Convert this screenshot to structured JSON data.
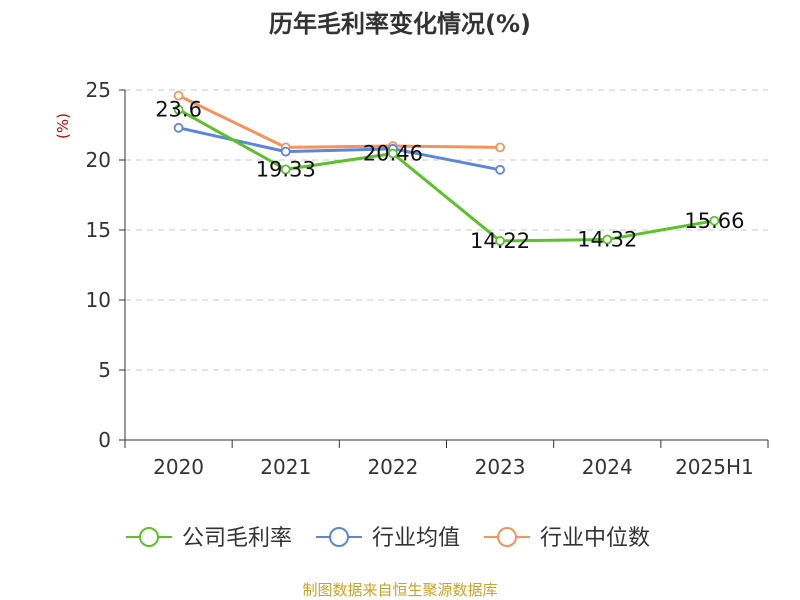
{
  "chart_data": {
    "type": "line",
    "title": "历年毛利率变化情况(%)",
    "ylabel": "(%)",
    "categories": [
      "2020",
      "2021",
      "2022",
      "2023",
      "2024",
      "2025H1"
    ],
    "ylim": [
      0,
      25
    ],
    "yticks": [
      0,
      5,
      10,
      15,
      20,
      25
    ],
    "grid": true,
    "legend_position": "bottom",
    "series": [
      {
        "name": "公司毛利率",
        "color": "#5cc12a",
        "values": [
          23.6,
          19.33,
          20.46,
          14.22,
          14.32,
          15.66
        ],
        "labels": [
          "23.6",
          "19.33",
          "20.46",
          "14.22",
          "14.32",
          "15.66"
        ]
      },
      {
        "name": "行业均值",
        "color": "#5b86d9",
        "values": [
          22.3,
          20.6,
          20.8,
          19.3,
          null,
          null
        ]
      },
      {
        "name": "行业中位数",
        "color": "#f4935b",
        "values": [
          24.6,
          20.9,
          21.0,
          20.9,
          null,
          null
        ]
      }
    ]
  },
  "source": "制图数据来自恒生聚源数据库"
}
